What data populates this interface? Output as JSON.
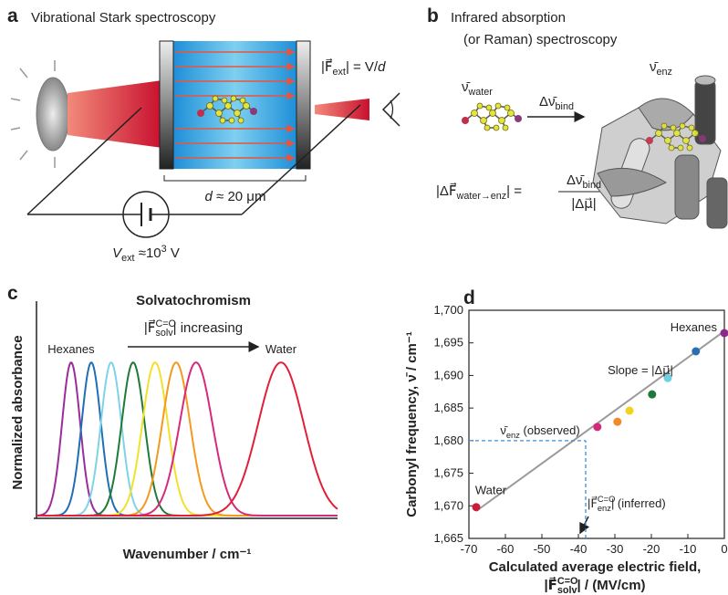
{
  "panel_a": {
    "label": "a",
    "title": "Vibrational Stark spectroscopy",
    "field_label": [
      {
        "text": "|F⃗"
      },
      {
        "sub": "ext"
      },
      {
        "text": "| = V/"
      },
      {
        "italic": "d"
      }
    ],
    "distance_label": [
      {
        "italic": "d"
      },
      {
        "text": " ≈ 20 μm"
      }
    ],
    "voltage_label": [
      {
        "italic": "V"
      },
      {
        "sub": "ext"
      },
      {
        "text": " ≈10"
      },
      {
        "sup": "3"
      },
      {
        "text": " V"
      }
    ]
  },
  "panel_b": {
    "label": "b",
    "title_lines": [
      "Infrared absorption",
      "(or Raman) spectroscopy"
    ],
    "nu_water": [
      {
        "text": "ν̄"
      },
      {
        "sub": "water"
      }
    ],
    "shift": [
      {
        "text": "Δν̄"
      },
      {
        "sub": "bind"
      }
    ],
    "nu_enz": [
      {
        "text": "ν̄"
      },
      {
        "sub": "enz"
      }
    ],
    "equation": {
      "lhs": [
        {
          "text": "|ΔF⃗"
        },
        {
          "sub": "water→enz"
        },
        {
          "text": "| ="
        }
      ],
      "numerator": [
        {
          "text": "Δν̄"
        },
        {
          "sub": "bind"
        }
      ],
      "denominator": [
        {
          "text": "|Δμ⃗|"
        }
      ]
    }
  },
  "chart_data": [
    {
      "type": "spectra",
      "panel_label": "c",
      "title": "Solvatochromism",
      "subtitle": [
        {
          "text": "|F⃗"
        },
        {
          "sup": "C=O"
        },
        {
          "sub": "solv"
        },
        {
          "text": "| increasing"
        }
      ],
      "xlabel": "Wavenumber / cm⁻¹",
      "ylabel": "Normalized absorbance",
      "hexanes_label": "Hexanes",
      "water_label": "Water",
      "xlim": [
        0,
        100
      ],
      "ylim": [
        0,
        1.4
      ],
      "series": [
        {
          "color": "#9b2c9b",
          "center": 11.5,
          "width": 3.0,
          "height": 1
        },
        {
          "color": "#1e6fb5",
          "center": 18.2,
          "width": 3.2,
          "height": 1
        },
        {
          "color": "#7fd3e6",
          "center": 24.8,
          "width": 3.4,
          "height": 1
        },
        {
          "color": "#1f7a3a",
          "center": 32.1,
          "width": 3.8,
          "height": 1
        },
        {
          "color": "#f2e02a",
          "center": 39.4,
          "width": 4.2,
          "height": 1
        },
        {
          "color": "#f39a1e",
          "center": 46.4,
          "width": 4.6,
          "height": 1
        },
        {
          "color": "#d62a7a",
          "center": 53.0,
          "width": 5.4,
          "height": 1
        },
        {
          "color": "#e0203a",
          "center": 81.2,
          "width": 7.5,
          "height": 1
        }
      ]
    },
    {
      "type": "scatter",
      "panel_label": "d",
      "xlabel": "Calculated average electric field,",
      "xlabel_2": [
        {
          "text": "|F⃗"
        },
        {
          "sup": "C=O"
        },
        {
          "sub": "solv"
        },
        {
          "text": "| / (MV/cm)"
        }
      ],
      "ylabel": "Carbonyl frequency, ν̄ / cm⁻¹",
      "x": [
        -68,
        -34.8,
        -29.3,
        -26,
        -19.8,
        -15.5,
        -7.8,
        0
      ],
      "y": [
        1669.8,
        1682.1,
        1682.9,
        1684.6,
        1687.1,
        1689.6,
        1693.7,
        1696.5
      ],
      "colors": [
        "#c8203c",
        "#d6287a",
        "#f08a2a",
        "#f2d21e",
        "#1f7a3a",
        "#6fd0e0",
        "#2a6fb0",
        "#8a2a8a"
      ],
      "fit": {
        "x": [
          -68,
          0
        ],
        "y": [
          1669.2,
          1696.8
        ],
        "color": "#9a9a9a"
      },
      "reference": {
        "x": -38,
        "y": 1680,
        "color": "#3a8fd8"
      },
      "annotations": {
        "hexanes": "Hexanes",
        "water": "Water",
        "slope": [
          {
            "text": "Slope = |Δμ⃗|"
          }
        ],
        "observed": [
          {
            "text": "ν̄"
          },
          {
            "sub": "enz"
          },
          {
            "text": " (observed)"
          }
        ],
        "inferred": [
          {
            "text": "|F⃗"
          },
          {
            "sup": "C=O"
          },
          {
            "sub": "enz"
          },
          {
            "text": "| (inferred)"
          }
        ]
      },
      "xlim": [
        -70,
        0
      ],
      "ylim": [
        1665,
        1700
      ],
      "xticks": [
        -70,
        -60,
        -50,
        -40,
        -30,
        -20,
        -10,
        0
      ],
      "yticks": [
        {
          "value": 1665,
          "label": "1,665"
        },
        {
          "value": 1670,
          "label": "1,670"
        },
        {
          "value": 1675,
          "label": "1,675"
        },
        {
          "value": 1680,
          "label": "1,680"
        },
        {
          "value": 1685,
          "label": "1,685"
        },
        {
          "value": 1690,
          "label": "1,690"
        },
        {
          "value": 1695,
          "label": "1,695"
        },
        {
          "value": 1700,
          "label": "1,700"
        }
      ]
    }
  ]
}
